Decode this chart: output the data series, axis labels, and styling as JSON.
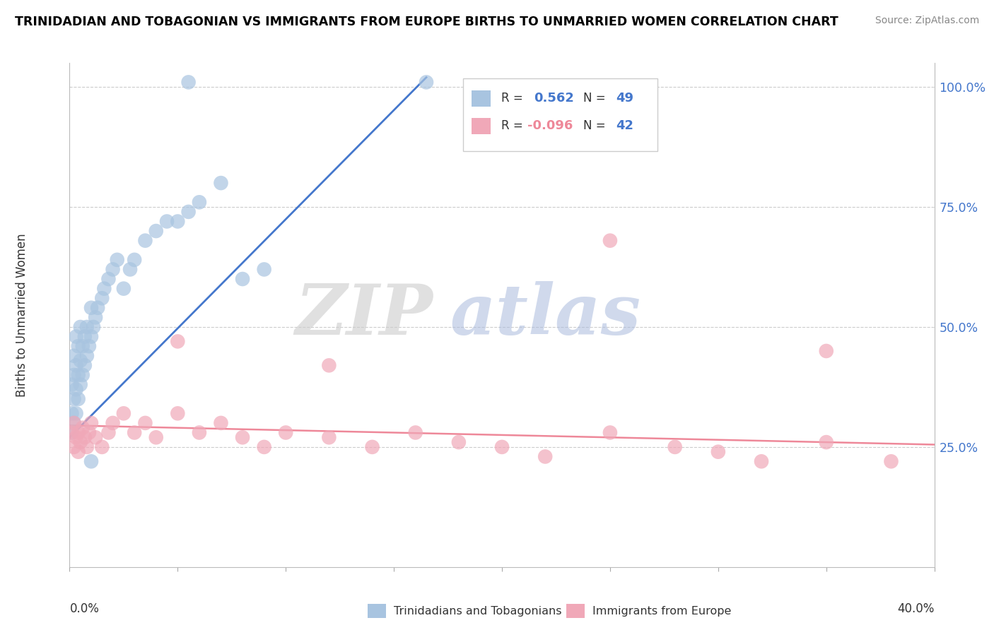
{
  "title": "TRINIDADIAN AND TOBAGONIAN VS IMMIGRANTS FROM EUROPE BIRTHS TO UNMARRIED WOMEN CORRELATION CHART",
  "source": "Source: ZipAtlas.com",
  "ylabel": "Births to Unmarried Women",
  "y_ticks": [
    0.25,
    0.5,
    0.75,
    1.0
  ],
  "y_tick_labels": [
    "25.0%",
    "50.0%",
    "75.0%",
    "100.0%"
  ],
  "legend_blue_r": "0.562",
  "legend_blue_n": "49",
  "legend_pink_r": "-0.096",
  "legend_pink_n": "42",
  "blue_color": "#A8C4E0",
  "pink_color": "#F0A8B8",
  "blue_line_color": "#4477CC",
  "pink_line_color": "#EE8899",
  "xlim": [
    0.0,
    0.4
  ],
  "ylim": [
    0.0,
    1.05
  ],
  "blue_x": [
    0.001,
    0.001,
    0.001,
    0.002,
    0.002,
    0.002,
    0.002,
    0.003,
    0.003,
    0.003,
    0.003,
    0.004,
    0.004,
    0.004,
    0.005,
    0.005,
    0.005,
    0.006,
    0.006,
    0.007,
    0.007,
    0.008,
    0.008,
    0.009,
    0.01,
    0.01,
    0.011,
    0.012,
    0.013,
    0.015,
    0.016,
    0.018,
    0.02,
    0.022,
    0.025,
    0.028,
    0.03,
    0.035,
    0.04,
    0.045,
    0.05,
    0.055,
    0.06,
    0.07,
    0.08,
    0.09,
    0.055,
    0.165,
    0.01
  ],
  "blue_y": [
    0.28,
    0.32,
    0.38,
    0.3,
    0.35,
    0.4,
    0.44,
    0.32,
    0.37,
    0.42,
    0.48,
    0.35,
    0.4,
    0.46,
    0.38,
    0.43,
    0.5,
    0.4,
    0.46,
    0.42,
    0.48,
    0.44,
    0.5,
    0.46,
    0.48,
    0.54,
    0.5,
    0.52,
    0.54,
    0.56,
    0.58,
    0.6,
    0.62,
    0.64,
    0.58,
    0.62,
    0.64,
    0.68,
    0.7,
    0.72,
    0.72,
    0.74,
    0.76,
    0.8,
    0.6,
    0.62,
    1.01,
    1.01,
    0.22
  ],
  "pink_x": [
    0.001,
    0.002,
    0.002,
    0.003,
    0.004,
    0.004,
    0.005,
    0.006,
    0.007,
    0.008,
    0.009,
    0.01,
    0.012,
    0.015,
    0.018,
    0.02,
    0.025,
    0.03,
    0.035,
    0.04,
    0.05,
    0.06,
    0.07,
    0.08,
    0.09,
    0.1,
    0.12,
    0.14,
    0.16,
    0.18,
    0.2,
    0.22,
    0.25,
    0.28,
    0.3,
    0.32,
    0.35,
    0.38,
    0.05,
    0.12,
    0.25,
    0.35
  ],
  "pink_y": [
    0.28,
    0.25,
    0.3,
    0.27,
    0.24,
    0.28,
    0.26,
    0.29,
    0.27,
    0.25,
    0.28,
    0.3,
    0.27,
    0.25,
    0.28,
    0.3,
    0.32,
    0.28,
    0.3,
    0.27,
    0.32,
    0.28,
    0.3,
    0.27,
    0.25,
    0.28,
    0.27,
    0.25,
    0.28,
    0.26,
    0.25,
    0.23,
    0.28,
    0.25,
    0.24,
    0.22,
    0.26,
    0.22,
    0.47,
    0.42,
    0.68,
    0.45
  ],
  "blue_line_x": [
    0.0,
    0.165
  ],
  "blue_line_y": [
    0.27,
    1.02
  ],
  "pink_line_x": [
    0.0,
    0.4
  ],
  "pink_line_y": [
    0.295,
    0.255
  ]
}
